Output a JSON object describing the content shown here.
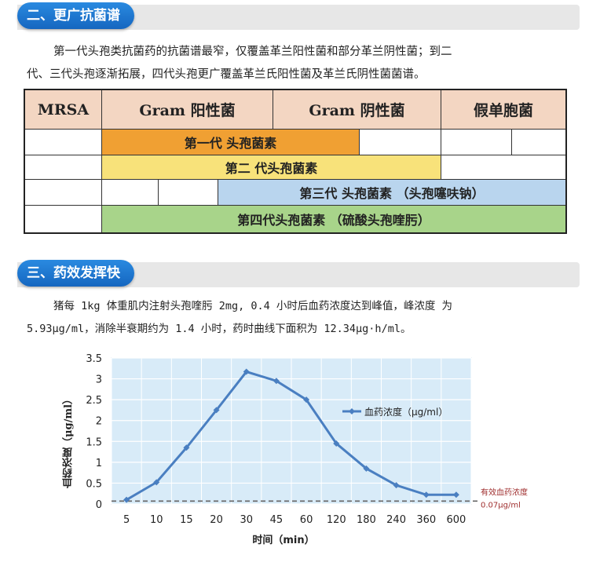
{
  "section2": {
    "title": "二、更广抗菌谱"
  },
  "para1": {
    "line1": "第一代头孢类抗菌药的抗菌谱最窄，仅覆盖革兰阳性菌和部分革兰阴性菌；到二",
    "line2": "代、三代头孢逐渐拓展，四代头孢更广覆盖革兰氏阳性菌及革兰氏阴性菌菌谱。"
  },
  "spectrum": {
    "headers": [
      "MRSA",
      "Gram 阳性菌",
      "Gram 阴性菌",
      "假单胞菌"
    ],
    "gen1": "第一代 头孢菌素",
    "gen2": "第二 代头孢菌素",
    "gen3": "第三代 头孢菌素 （头孢噻呋钠）",
    "gen4": "第四代头孢菌素 （硫酸头孢喹肟）",
    "colors": {
      "gen1": "#f0a033",
      "gen2": "#f8e27a",
      "gen3": "#b9d5ee",
      "gen4": "#a8d48a",
      "header": "#f3d6c2"
    }
  },
  "section3": {
    "title": "三、药效发挥快"
  },
  "para2": {
    "line1": "猪每 1kg 体重肌内注射头孢喹肟 2mg, 0.4 小时后血药浓度达到峰值，峰浓度 为",
    "line2": "5.93μg/ml，消除半衰期约为 1.4 小时，药时曲线下面积为 12.34μg·h/ml。"
  },
  "chart_data": {
    "type": "line",
    "categories": [
      "5",
      "10",
      "15",
      "20",
      "30",
      "45",
      "60",
      "120",
      "180",
      "240",
      "360",
      "600"
    ],
    "series": [
      {
        "name": "血药浓度（μg/ml）",
        "values": [
          0.1,
          0.52,
          1.35,
          2.25,
          3.17,
          2.95,
          2.5,
          1.45,
          0.85,
          0.45,
          0.22,
          0.22
        ]
      }
    ],
    "reference_line": {
      "value": 0.07,
      "label1": "有效血药浓度",
      "label2": "0.07μg/ml"
    },
    "ylim": [
      0,
      3.5
    ],
    "yticks": [
      "0",
      "0.5",
      "1",
      "1.5",
      "2",
      "2.5",
      "3",
      "3.5"
    ],
    "xlabel": "时间（min）",
    "ylabel": "血药浓度（μg/ml）",
    "grid": true,
    "legend": "right",
    "colors": {
      "line": "#4a7fc1",
      "background": "#d8ebf8",
      "reference": "#666666"
    }
  }
}
